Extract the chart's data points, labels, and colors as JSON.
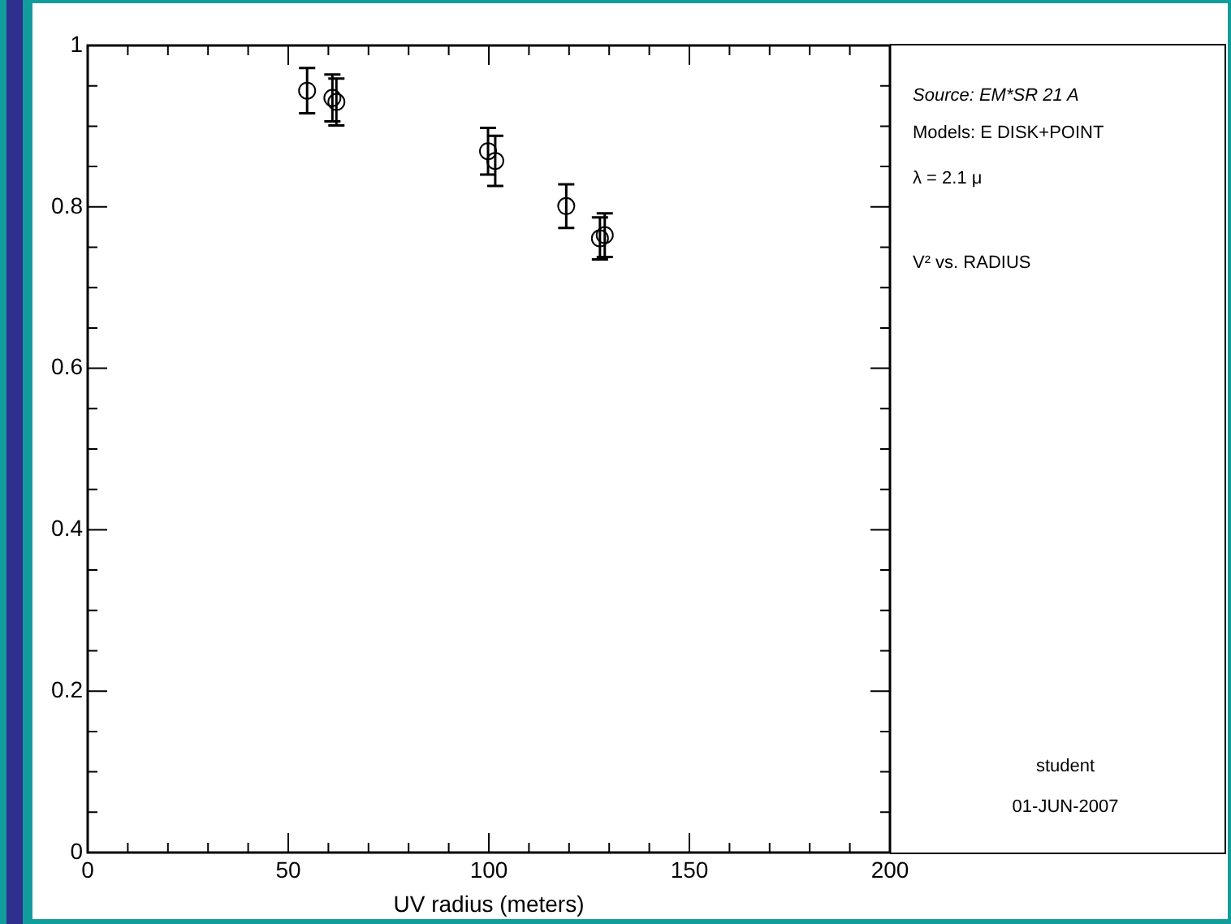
{
  "chart_data": {
    "type": "scatter",
    "xlabel": "UV radius (meters)",
    "x": [
      54.7,
      61,
      62,
      99.8,
      101.6,
      119.3,
      127.7,
      128.9
    ],
    "values": [
      0.944,
      0.935,
      0.93,
      0.869,
      0.857,
      0.801,
      0.761,
      0.765
    ],
    "errors": [
      0.028,
      0.029,
      0.029,
      0.029,
      0.031,
      0.027,
      0.026,
      0.027
    ],
    "color": "#000000",
    "marker": "circle",
    "grid": false,
    "legend": false,
    "xlim": [
      0,
      200
    ],
    "xticks": [
      0,
      {
        "value": 10,
        "label": null
      },
      {
        "value": 20,
        "label": null
      },
      {
        "value": 30,
        "label": null
      },
      {
        "value": 40,
        "label": null
      },
      50,
      {
        "value": 60,
        "label": null
      },
      {
        "value": 70,
        "label": null
      },
      {
        "value": 80,
        "label": null
      },
      {
        "value": 90,
        "label": null
      },
      100,
      {
        "value": 110,
        "label": null
      },
      {
        "value": 120,
        "label": null
      },
      {
        "value": 130,
        "label": null
      },
      {
        "value": 140,
        "label": null
      },
      150,
      {
        "value": 160,
        "label": null
      },
      {
        "value": 170,
        "label": null
      },
      {
        "value": 180,
        "label": null
      },
      {
        "value": 190,
        "label": null
      },
      200
    ],
    "ylim": [
      0,
      1
    ],
    "yticks": [
      0,
      {
        "value": 0.05,
        "label": null
      },
      {
        "value": 0.1,
        "label": null
      },
      {
        "value": 0.15,
        "label": null
      },
      0.2,
      {
        "value": 0.25,
        "label": null
      },
      {
        "value": 0.3,
        "label": null
      },
      {
        "value": 0.35,
        "label": null
      },
      0.4,
      {
        "value": 0.45,
        "label": null
      },
      {
        "value": 0.5,
        "label": null
      },
      {
        "value": 0.55,
        "label": null
      },
      0.6,
      {
        "value": 0.65,
        "label": null
      },
      {
        "value": 0.7,
        "label": null
      },
      {
        "value": 0.75,
        "label": null
      },
      0.8,
      {
        "value": 0.85,
        "label": null
      },
      {
        "value": 0.9,
        "label": null
      },
      {
        "value": 0.95,
        "label": null
      },
      1
    ],
    "annotations": [
      "Source: EM*SR 21 A",
      "Models: E DISK+POINT",
      "λ = 2.1 μ",
      "V² vs. RADIUS",
      "student",
      "01-JUN-2007"
    ]
  }
}
